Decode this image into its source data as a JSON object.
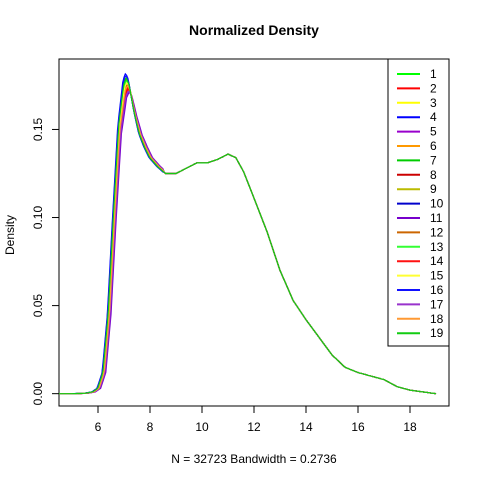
{
  "chart_data": {
    "type": "line",
    "title": "Normalized Density",
    "xlabel": "N = 32723   Bandwidth = 0.2736",
    "ylabel": "Density",
    "xlim": [
      4.5,
      19.5
    ],
    "ylim": [
      -0.007,
      0.19
    ],
    "x_ticks": [
      6,
      8,
      10,
      12,
      14,
      16,
      18
    ],
    "y_ticks": [
      0.0,
      0.05,
      0.1,
      0.15
    ],
    "x_tick_labels": [
      "6",
      "8",
      "10",
      "12",
      "14",
      "16",
      "18"
    ],
    "y_tick_labels": [
      "0.00",
      "0.05",
      "0.10",
      "0.15"
    ],
    "grid": false,
    "legend_position": "top-right",
    "x": [
      4.5,
      5.0,
      5.5,
      5.8,
      6.0,
      6.2,
      6.4,
      6.6,
      6.8,
      7.0,
      7.1,
      7.2,
      7.4,
      7.6,
      7.8,
      8.0,
      8.3,
      8.6,
      9.0,
      9.4,
      9.8,
      10.2,
      10.6,
      11.0,
      11.3,
      11.6,
      12.0,
      12.5,
      13.0,
      13.5,
      14.0,
      14.5,
      15.0,
      15.5,
      16.0,
      16.5,
      17.0,
      17.5,
      18.0,
      18.5,
      19.0
    ],
    "series": [
      {
        "name": "1",
        "color": "#00FF00",
        "peak": 0.178,
        "shift": 0.0
      },
      {
        "name": "2",
        "color": "#FF0000",
        "peak": 0.173,
        "shift": 0.06
      },
      {
        "name": "3",
        "color": "#FFFF00",
        "peak": 0.176,
        "shift": 0.03
      },
      {
        "name": "4",
        "color": "#0000FF",
        "peak": 0.182,
        "shift": -0.04
      },
      {
        "name": "5",
        "color": "#9900CC",
        "peak": 0.172,
        "shift": 0.08
      },
      {
        "name": "6",
        "color": "#FF9900",
        "peak": 0.175,
        "shift": 0.04
      },
      {
        "name": "7",
        "color": "#00CC00",
        "peak": 0.18,
        "shift": -0.02
      },
      {
        "name": "8",
        "color": "#CC0000",
        "peak": 0.174,
        "shift": 0.05
      },
      {
        "name": "9",
        "color": "#BBBB00",
        "peak": 0.177,
        "shift": 0.02
      },
      {
        "name": "10",
        "color": "#0000CC",
        "peak": 0.179,
        "shift": -0.01
      },
      {
        "name": "11",
        "color": "#7700CC",
        "peak": 0.171,
        "shift": 0.1
      },
      {
        "name": "12",
        "color": "#CC6600",
        "peak": 0.176,
        "shift": 0.03
      },
      {
        "name": "13",
        "color": "#33FF33",
        "peak": 0.178,
        "shift": 0.0
      },
      {
        "name": "14",
        "color": "#FF1111",
        "peak": 0.174,
        "shift": 0.05
      },
      {
        "name": "15",
        "color": "#FFFF33",
        "peak": 0.177,
        "shift": 0.02
      },
      {
        "name": "16",
        "color": "#1111FF",
        "peak": 0.181,
        "shift": -0.03
      },
      {
        "name": "17",
        "color": "#9933CC",
        "peak": 0.172,
        "shift": 0.07
      },
      {
        "name": "18",
        "color": "#FF9933",
        "peak": 0.175,
        "shift": 0.04
      },
      {
        "name": "19",
        "color": "#11CC11",
        "peak": 0.179,
        "shift": -0.01
      }
    ],
    "base_density": [
      0.0,
      0.0,
      0.0002,
      0.001,
      0.003,
      0.012,
      0.045,
      0.1,
      0.15,
      0.172,
      0.175,
      0.172,
      0.158,
      0.147,
      0.14,
      0.134,
      0.129,
      0.125,
      0.125,
      0.128,
      0.131,
      0.131,
      0.133,
      0.136,
      0.134,
      0.126,
      0.111,
      0.092,
      0.07,
      0.053,
      0.042,
      0.032,
      0.022,
      0.015,
      0.012,
      0.01,
      0.008,
      0.004,
      0.002,
      0.001,
      0.0
    ]
  }
}
